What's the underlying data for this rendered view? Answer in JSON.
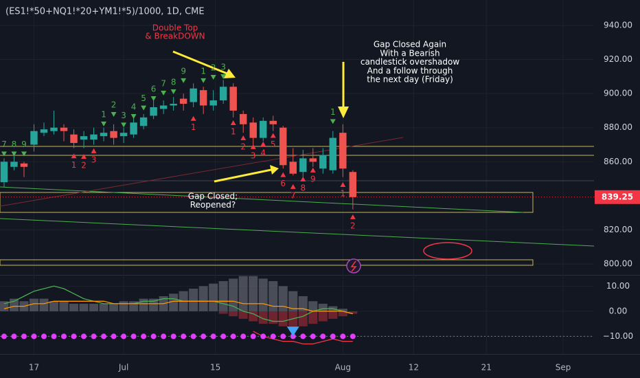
{
  "chart_data": [
    {
      "type": "candlestick",
      "title": "(ES1!*50+NQ1!*20+YM1!*5)/1000, 1D, CME",
      "open": [
        848,
        857,
        859,
        870,
        877,
        878,
        880,
        876,
        873,
        873,
        875,
        878,
        875,
        876,
        881,
        887,
        891,
        893,
        897,
        895,
        902,
        893,
        896,
        904,
        888,
        883,
        874,
        884,
        880,
        860,
        854,
        862,
        856,
        855,
        877,
        854
      ],
      "high": [
        862,
        866,
        860,
        882,
        883,
        890,
        882,
        879,
        878,
        880,
        880,
        882,
        880,
        886,
        888,
        896,
        896,
        898,
        900,
        906,
        904,
        902,
        908,
        906,
        890,
        886,
        886,
        887,
        881,
        868,
        867,
        868,
        868,
        878,
        882,
        855
      ],
      "low": [
        845,
        855,
        851,
        866,
        875,
        876,
        872,
        868,
        868,
        870,
        872,
        870,
        871,
        874,
        879,
        885,
        888,
        890,
        890,
        892,
        888,
        890,
        894,
        886,
        877,
        870,
        872,
        878,
        856,
        852,
        851,
        857,
        853,
        853,
        851,
        832
      ],
      "close": [
        860,
        860,
        857,
        878,
        879,
        880,
        878,
        871,
        875,
        876,
        877,
        874,
        877,
        883,
        886,
        892,
        893,
        894,
        894,
        903,
        893,
        896,
        904,
        890,
        882,
        874,
        884,
        882,
        858,
        853,
        862,
        860,
        864,
        874,
        856,
        839.25
      ],
      "up_color": "#26a69a",
      "down_color": "#ef5350",
      "xlim": [
        -0.41,
        59.2
      ],
      "xticks": [
        {
          "value": 3,
          "label": "17"
        },
        {
          "value": 12,
          "label": "Jul"
        },
        {
          "value": 21.2,
          "label": "15"
        },
        {
          "value": 34,
          "label": "Aug"
        },
        {
          "value": 41.1,
          "label": "12"
        },
        {
          "value": 48.4,
          "label": "21"
        },
        {
          "value": 56.1,
          "label": "Sep"
        }
      ],
      "ylim": [
        793.6,
        954.9
      ],
      "yticks": [
        {
          "value": 940,
          "label": "940.00"
        },
        {
          "value": 920,
          "label": "920.00"
        },
        {
          "value": 900,
          "label": "900.00"
        },
        {
          "value": 880,
          "label": "880.00"
        },
        {
          "value": 860,
          "label": "860.00"
        },
        {
          "value": 820,
          "label": "820.00"
        },
        {
          "value": 800,
          "label": "800.00"
        }
      ],
      "grid": true,
      "td_up": {
        "color": "#4caf50",
        "index": [
          0,
          1,
          2,
          10,
          11,
          12,
          13,
          14,
          15,
          16,
          17,
          18,
          20,
          21,
          22,
          33
        ],
        "price": [
          870,
          870,
          870,
          887.6,
          893.2,
          887,
          892,
          897,
          902.5,
          905.7,
          906.5,
          913,
          913,
          915,
          915.4,
          889
        ],
        "count": [
          7,
          8,
          9,
          1,
          2,
          3,
          4,
          5,
          6,
          7,
          8,
          9,
          1,
          2,
          3,
          1
        ]
      },
      "td_down": {
        "color": "#f23645",
        "index": [
          7,
          8,
          9,
          19,
          23,
          24,
          25,
          26,
          27,
          28,
          29,
          30,
          31,
          34,
          35
        ],
        "price": [
          858,
          857.7,
          861,
          880,
          877.5,
          868.6,
          863.4,
          865,
          870,
          847,
          840,
          844.4,
          849.7,
          841.2,
          822.3
        ],
        "count": [
          1,
          2,
          3,
          1,
          1,
          2,
          3,
          4,
          5,
          6,
          7,
          8,
          9,
          1,
          2
        ]
      },
      "annotations": {
        "double_top": [
          "Double Top",
          "& BreakDOWN"
        ],
        "gap_again": [
          "Gap Closed Again",
          "With a Bearish",
          "candlestick overshadow",
          "And a follow through",
          "the next day (Friday)"
        ],
        "gap_closed": [
          "Gap Closed;",
          "Reopened?"
        ]
      }
    },
    {
      "type": "indicator",
      "ylim": [
        -17,
        14.2
      ],
      "yticks": [
        {
          "value": 10,
          "label": "10.00"
        },
        {
          "value": 0,
          "label": "0.00"
        },
        {
          "value": -10,
          "label": "−10.00"
        }
      ],
      "series": [
        {
          "kind": "hist",
          "color": "#5d606b",
          "values": [
            4,
            5,
            4,
            5,
            5,
            4,
            4,
            3,
            3,
            3,
            3,
            3,
            4,
            4,
            5,
            5,
            6,
            7,
            8,
            9,
            10,
            11,
            12,
            13,
            14,
            14,
            13,
            12,
            10,
            8,
            6,
            4,
            3,
            2,
            1,
            null
          ]
        },
        {
          "kind": "hist",
          "color": "#8c2a33",
          "values": [
            null,
            null,
            null,
            null,
            null,
            null,
            null,
            null,
            null,
            null,
            null,
            null,
            null,
            null,
            null,
            null,
            null,
            null,
            null,
            null,
            null,
            null,
            -1,
            -2,
            -3,
            -4,
            -5,
            -5,
            -6,
            -6,
            -6,
            -5,
            -4,
            -3,
            -2,
            -1
          ]
        },
        {
          "kind": "line",
          "color": "#4caf50",
          "values": [
            3,
            4,
            6,
            8,
            9,
            10,
            9,
            7,
            5,
            4,
            3,
            3,
            3,
            3,
            4,
            4,
            5,
            5,
            4,
            4,
            4,
            4,
            3,
            2,
            0,
            -1,
            -3,
            -4,
            -4,
            -3,
            -2,
            0,
            1,
            1,
            0,
            -1
          ]
        },
        {
          "kind": "line",
          "color": "#ff9800",
          "values": [
            1,
            2,
            2,
            3,
            3,
            4,
            4,
            4,
            4,
            4,
            4,
            3,
            3,
            3,
            3,
            3,
            3,
            4,
            4,
            4,
            4,
            4,
            4,
            4,
            3,
            3,
            3,
            2,
            2,
            1,
            1,
            0,
            0,
            0,
            0,
            -1
          ]
        },
        {
          "kind": "line",
          "color": "#f23645",
          "values": [
            null,
            null,
            null,
            null,
            null,
            null,
            null,
            null,
            null,
            null,
            null,
            null,
            null,
            null,
            null,
            null,
            null,
            null,
            null,
            null,
            null,
            null,
            null,
            null,
            null,
            -8,
            -10,
            -11,
            -12,
            -12,
            -13,
            -13,
            -12,
            -11,
            -12,
            -12
          ]
        },
        {
          "kind": "dots",
          "color": "#e040fb",
          "values": [
            -10,
            -10,
            -10,
            -10,
            -10,
            -10,
            -10,
            -10,
            -10,
            -10,
            -10,
            -10,
            -10,
            -10,
            -10,
            -10,
            -10,
            -10,
            -10,
            -10,
            -10,
            -10,
            -10,
            -10,
            -10,
            -10,
            -10,
            -10,
            -10,
            -10,
            -10,
            -10,
            -10,
            -10,
            -10,
            -10
          ]
        }
      ],
      "signal": {
        "index": 29,
        "value": -8,
        "color": "#42a5f5"
      }
    }
  ]
}
